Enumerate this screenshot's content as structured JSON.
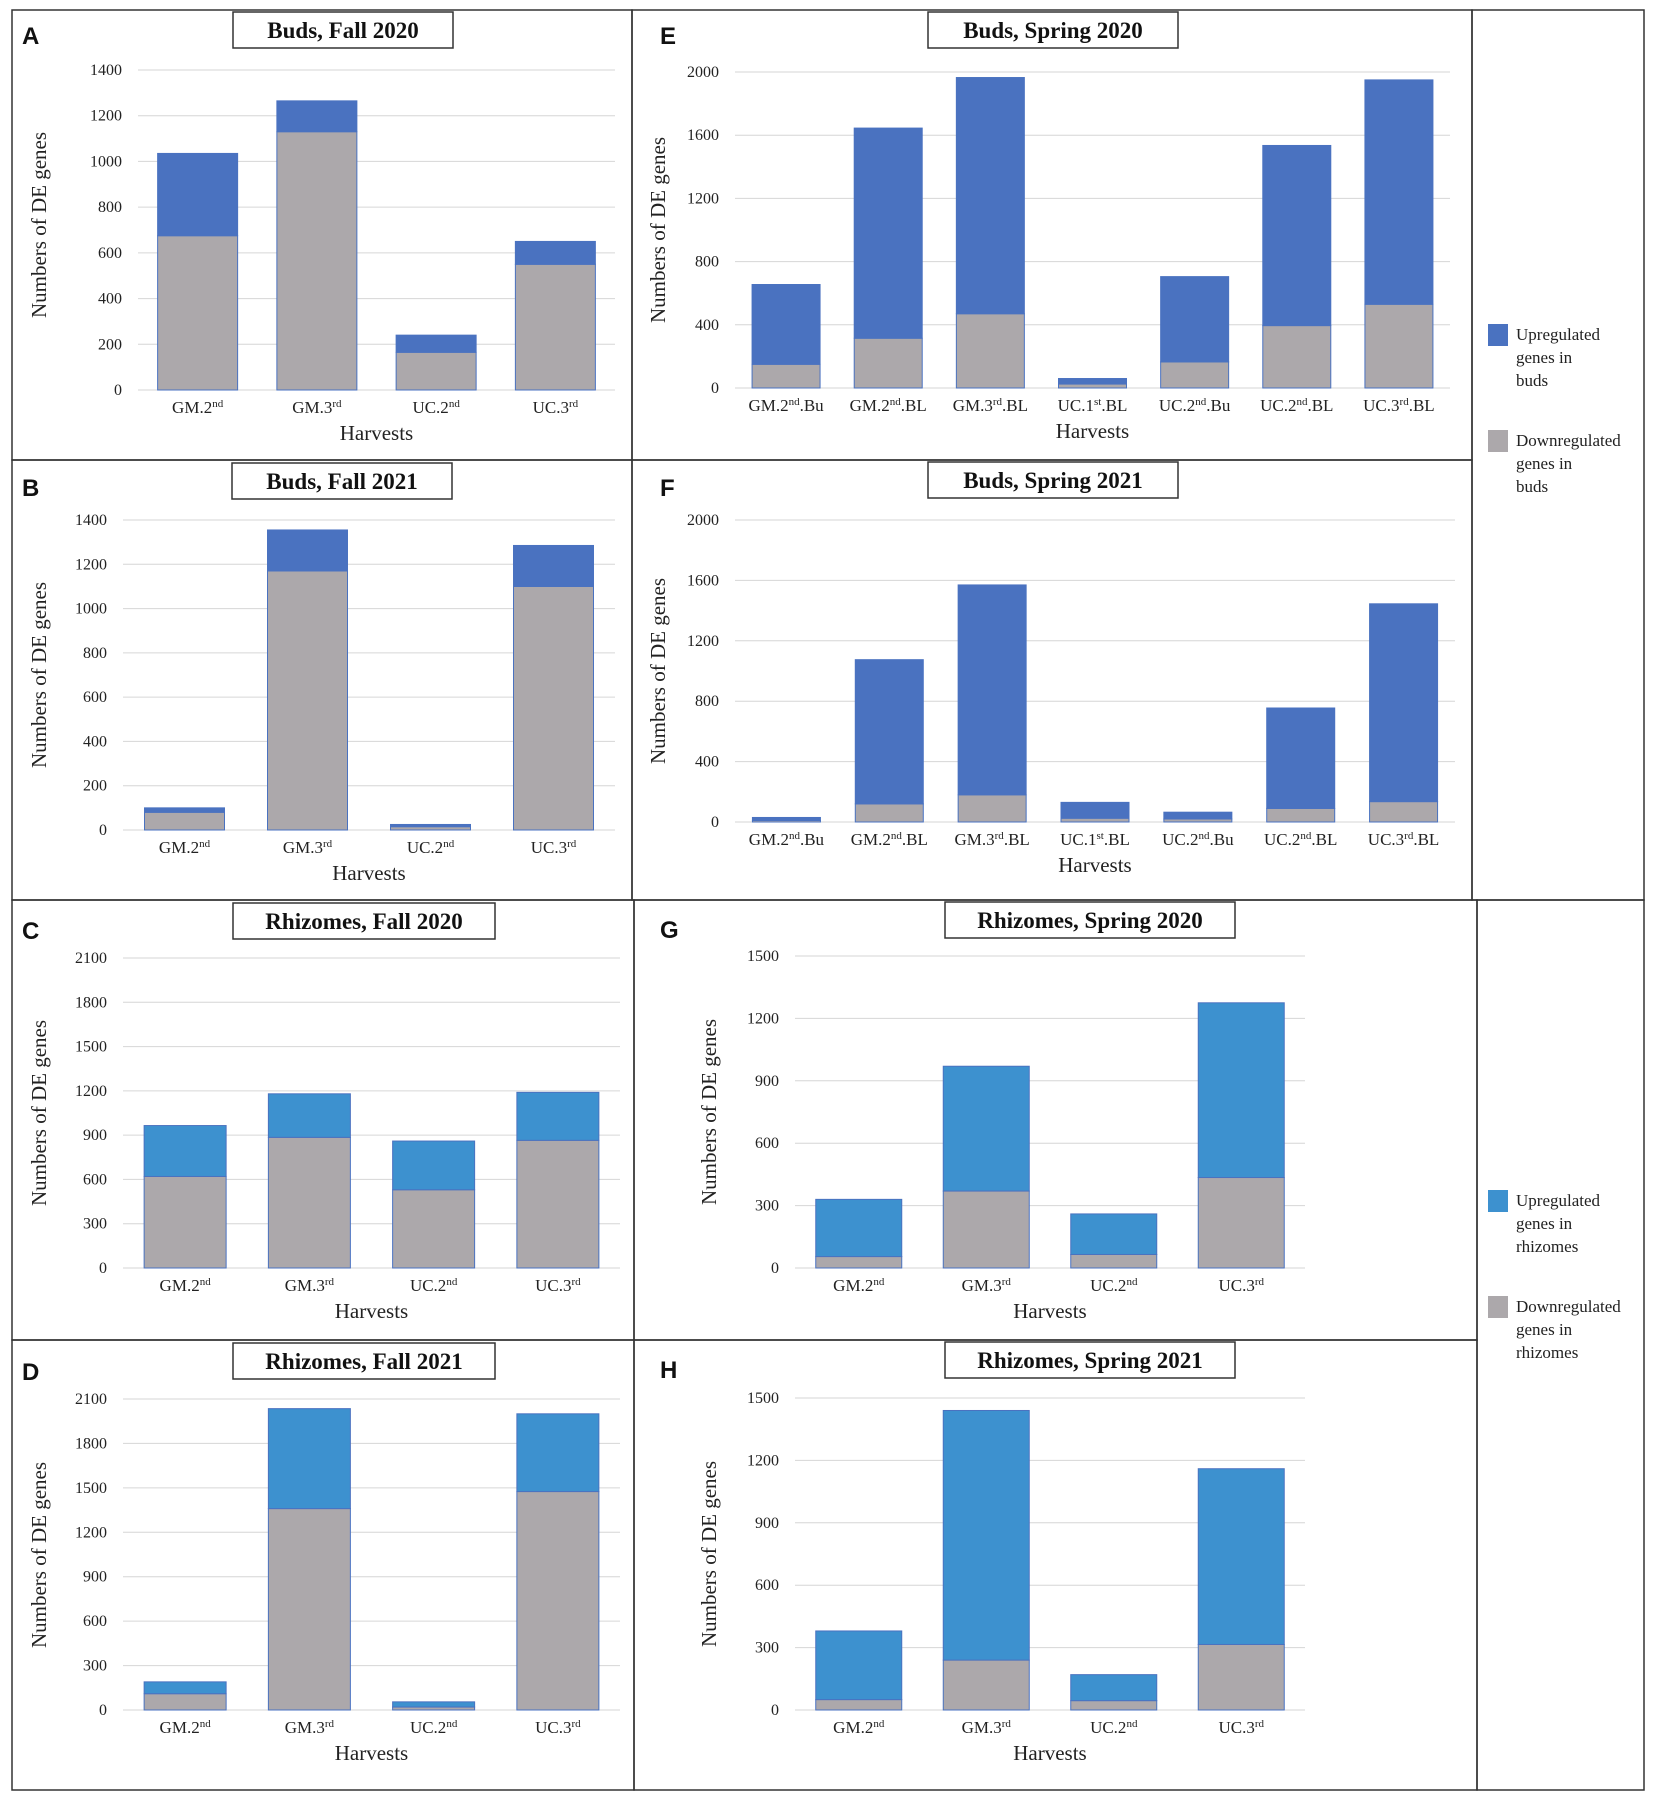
{
  "colors": {
    "up_buds": "#4a72c0",
    "up_rhizomes": "#3d91cf",
    "down": "#aca8ab",
    "bar_edge": "#4a72c0"
  },
  "legends": [
    {
      "group": "buds",
      "items": [
        {
          "color_key": "up_buds",
          "lines": [
            "Upregulated",
            "genes in",
            "buds"
          ]
        },
        {
          "color_key": "down",
          "lines": [
            "Downregulated",
            "genes in",
            "buds"
          ]
        }
      ]
    },
    {
      "group": "rhizomes",
      "items": [
        {
          "color_key": "up_rhizomes",
          "lines": [
            "Upregulated",
            "genes in",
            "rhizomes"
          ]
        },
        {
          "color_key": "down",
          "lines": [
            "Downregulated",
            "genes in",
            "rhizomes"
          ]
        }
      ]
    }
  ],
  "chart_data": [
    {
      "type": "bar",
      "stacked": true,
      "panel": "A",
      "title": "Buds, Fall 2020",
      "xlabel": "Harvests",
      "ylabel": "Numbers of DE genes",
      "ylim": [
        0,
        1400
      ],
      "ticks": [
        0,
        200,
        400,
        600,
        800,
        1000,
        1200,
        1400
      ],
      "up_color_key": "up_buds",
      "categories": [
        [
          "GM.2",
          "nd",
          ""
        ],
        [
          "GM.3",
          "rd",
          ""
        ],
        [
          "UC.2",
          "nd",
          ""
        ],
        [
          "UC.3",
          "rd",
          ""
        ]
      ],
      "series": [
        {
          "name": "Downregulated genes in buds",
          "values": [
            675,
            1130,
            165,
            550
          ]
        },
        {
          "name": "Upregulated genes in buds",
          "values": [
            360,
            135,
            75,
            100
          ]
        }
      ]
    },
    {
      "type": "bar",
      "stacked": true,
      "panel": "B",
      "title": "Buds, Fall 2021",
      "xlabel": "Harvests",
      "ylabel": "Numbers of DE genes",
      "ylim": [
        0,
        1400
      ],
      "ticks": [
        0,
        200,
        400,
        600,
        800,
        1000,
        1200,
        1400
      ],
      "up_color_key": "up_buds",
      "categories": [
        [
          "GM.2",
          "nd",
          ""
        ],
        [
          "GM.3",
          "rd",
          ""
        ],
        [
          "UC.2",
          "nd",
          ""
        ],
        [
          "UC.3",
          "rd",
          ""
        ]
      ],
      "series": [
        {
          "name": "Downregulated genes in buds",
          "values": [
            80,
            1170,
            15,
            1100
          ]
        },
        {
          "name": "Upregulated genes in buds",
          "values": [
            20,
            185,
            10,
            185
          ]
        }
      ]
    },
    {
      "type": "bar",
      "stacked": true,
      "panel": "C",
      "title": "Rhizomes, Fall 2020",
      "xlabel": "Harvests",
      "ylabel": "Numbers of DE genes",
      "ylim": [
        0,
        2100
      ],
      "ticks": [
        0,
        300,
        600,
        900,
        1200,
        1500,
        1800,
        2100
      ],
      "up_color_key": "up_rhizomes",
      "categories": [
        [
          "GM.2",
          "nd",
          ""
        ],
        [
          "GM.3",
          "rd",
          ""
        ],
        [
          "UC.2",
          "nd",
          ""
        ],
        [
          "UC.3",
          "rd",
          ""
        ]
      ],
      "series": [
        {
          "name": "Downregulated genes in rhizomes",
          "values": [
            620,
            885,
            530,
            865
          ]
        },
        {
          "name": "Upregulated genes in rhizomes",
          "values": [
            345,
            295,
            330,
            325
          ]
        }
      ]
    },
    {
      "type": "bar",
      "stacked": true,
      "panel": "D",
      "title": "Rhizomes, Fall 2021",
      "xlabel": "Harvests",
      "ylabel": "Numbers of DE genes",
      "ylim": [
        0,
        2100
      ],
      "ticks": [
        0,
        300,
        600,
        900,
        1200,
        1500,
        1800,
        2100
      ],
      "up_color_key": "up_rhizomes",
      "categories": [
        [
          "GM.2",
          "nd",
          ""
        ],
        [
          "GM.3",
          "rd",
          ""
        ],
        [
          "UC.2",
          "nd",
          ""
        ],
        [
          "UC.3",
          "rd",
          ""
        ]
      ],
      "series": [
        {
          "name": "Downregulated genes in rhizomes",
          "values": [
            110,
            1360,
            20,
            1475
          ]
        },
        {
          "name": "Upregulated genes in rhizomes",
          "values": [
            80,
            675,
            35,
            525
          ]
        }
      ]
    },
    {
      "type": "bar",
      "stacked": true,
      "panel": "E",
      "title": "Buds, Spring 2020",
      "xlabel": "Harvests",
      "ylabel": "Numbers of DE genes",
      "ylim": [
        0,
        2000
      ],
      "ticks": [
        0,
        400,
        800,
        1200,
        1600,
        2000
      ],
      "up_color_key": "up_buds",
      "categories": [
        [
          "GM.2",
          "nd",
          ".Bu"
        ],
        [
          "GM.2",
          "nd",
          ".BL"
        ],
        [
          "GM.3",
          "rd",
          ".BL"
        ],
        [
          "UC.1",
          "st",
          ".BL"
        ],
        [
          "UC.2",
          "nd",
          ".Bu"
        ],
        [
          "UC.2",
          "nd",
          ".BL"
        ],
        [
          "UC.3",
          "rd",
          ".BL"
        ]
      ],
      "series": [
        {
          "name": "Downregulated genes in buds",
          "values": [
            150,
            315,
            470,
            25,
            165,
            395,
            530
          ]
        },
        {
          "name": "Upregulated genes in buds",
          "values": [
            505,
            1330,
            1495,
            35,
            540,
            1140,
            1420
          ]
        }
      ]
    },
    {
      "type": "bar",
      "stacked": true,
      "panel": "F",
      "title": "Buds, Spring 2021",
      "xlabel": "Harvests",
      "ylabel": "Numbers of DE genes",
      "ylim": [
        0,
        2000
      ],
      "ticks": [
        0,
        400,
        800,
        1200,
        1600,
        2000
      ],
      "up_color_key": "up_buds",
      "categories": [
        [
          "GM.2",
          "nd",
          ".Bu"
        ],
        [
          "GM.2",
          "nd",
          ".BL"
        ],
        [
          "GM.3",
          "rd",
          ".BL"
        ],
        [
          "UC.1",
          "st",
          ".BL"
        ],
        [
          "UC.2",
          "nd",
          ".Bu"
        ],
        [
          "UC.2",
          "nd",
          ".BL"
        ],
        [
          "UC.3",
          "rd",
          ".BL"
        ]
      ],
      "series": [
        {
          "name": "Downregulated genes in buds",
          "values": [
            10,
            120,
            180,
            25,
            20,
            90,
            135
          ]
        },
        {
          "name": "Upregulated genes in buds",
          "values": [
            20,
            955,
            1390,
            105,
            45,
            665,
            1310
          ]
        }
      ]
    },
    {
      "type": "bar",
      "stacked": true,
      "panel": "G",
      "title": "Rhizomes, Spring 2020",
      "xlabel": "Harvests",
      "ylabel": "Numbers of DE genes",
      "ylim": [
        0,
        1500
      ],
      "ticks": [
        0,
        300,
        600,
        900,
        1200,
        1500
      ],
      "up_color_key": "up_rhizomes",
      "categories": [
        [
          "GM.2",
          "nd",
          ""
        ],
        [
          "GM.3",
          "rd",
          ""
        ],
        [
          "UC.2",
          "nd",
          ""
        ],
        [
          "UC.3",
          "rd",
          ""
        ]
      ],
      "series": [
        {
          "name": "Downregulated genes in rhizomes",
          "values": [
            55,
            370,
            65,
            435
          ]
        },
        {
          "name": "Upregulated genes in rhizomes",
          "values": [
            275,
            600,
            195,
            840
          ]
        }
      ]
    },
    {
      "type": "bar",
      "stacked": true,
      "panel": "H",
      "title": "Rhizomes, Spring 2021",
      "xlabel": "Harvests",
      "ylabel": "Numbers of DE genes",
      "ylim": [
        0,
        1500
      ],
      "ticks": [
        0,
        300,
        600,
        900,
        1200,
        1500
      ],
      "up_color_key": "up_rhizomes",
      "categories": [
        [
          "GM.2",
          "nd",
          ""
        ],
        [
          "GM.3",
          "rd",
          ""
        ],
        [
          "UC.2",
          "nd",
          ""
        ],
        [
          "UC.3",
          "rd",
          ""
        ]
      ],
      "series": [
        {
          "name": "Downregulated genes in rhizomes",
          "values": [
            50,
            240,
            45,
            315
          ]
        },
        {
          "name": "Upregulated genes in rhizomes",
          "values": [
            330,
            1200,
            125,
            845
          ]
        }
      ]
    }
  ]
}
